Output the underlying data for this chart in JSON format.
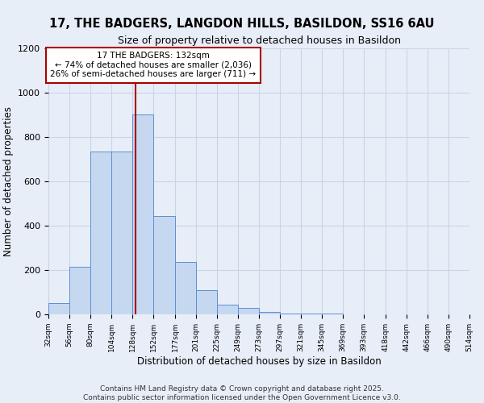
{
  "title1": "17, THE BADGERS, LANGDON HILLS, BASILDON, SS16 6AU",
  "title2": "Size of property relative to detached houses in Basildon",
  "xlabel": "Distribution of detached houses by size in Basildon",
  "ylabel": "Number of detached properties",
  "footer": "Contains HM Land Registry data © Crown copyright and database right 2025.\nContains public sector information licensed under the Open Government Licence v3.0.",
  "bin_edges": [
    32,
    56,
    80,
    104,
    128,
    152,
    177,
    201,
    225,
    249,
    273,
    297,
    321,
    345,
    369,
    393,
    418,
    442,
    466,
    490,
    514
  ],
  "bar_heights": [
    50,
    215,
    735,
    735,
    900,
    445,
    235,
    110,
    45,
    30,
    10,
    5,
    3,
    2,
    1,
    1,
    1,
    1,
    1,
    1
  ],
  "bar_color": "#c5d8f0",
  "bar_edge_color": "#5b8fd4",
  "grid_color": "#c8d4e8",
  "bg_color": "#e8eef8",
  "red_line_x": 132,
  "annotation_text": "17 THE BADGERS: 132sqm\n← 74% of detached houses are smaller (2,036)\n26% of semi-detached houses are larger (711) →",
  "annotation_box_color": "#ffffff",
  "annotation_border_color": "#aa0000",
  "ylim": [
    0,
    1200
  ],
  "yticks": [
    0,
    200,
    400,
    600,
    800,
    1000,
    1200
  ],
  "title1_fontsize": 10.5,
  "title2_fontsize": 9,
  "ylabel_fontsize": 8.5,
  "xlabel_fontsize": 8.5,
  "ytick_fontsize": 8,
  "xtick_fontsize": 6.5,
  "annot_fontsize": 7.5,
  "footer_fontsize": 6.5
}
